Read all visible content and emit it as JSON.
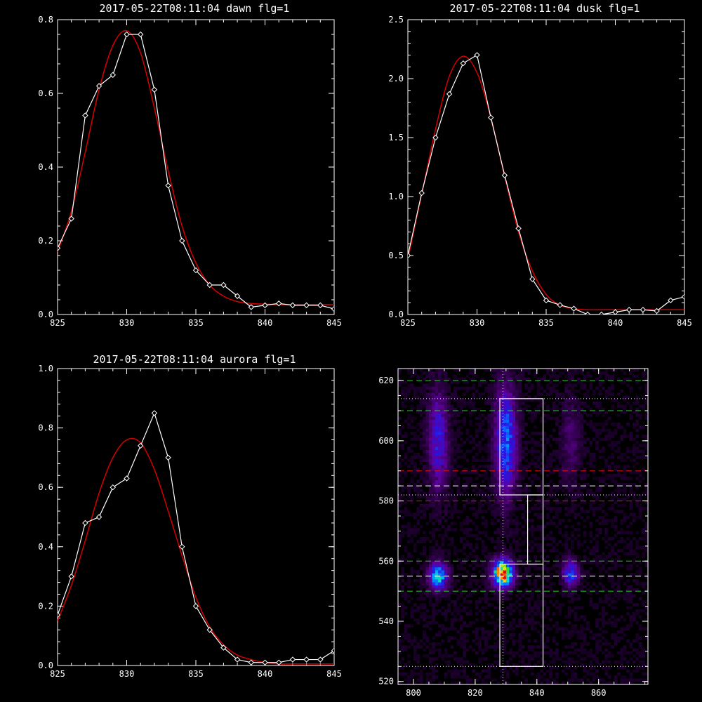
{
  "colors": {
    "background": "#000000",
    "axes": "#ffffff",
    "data_line": "#ffffff",
    "fit_line": "#d40000",
    "green_dash": "#22cc22",
    "red_dash": "#dd1111"
  },
  "chart_data": [
    {
      "type": "line",
      "title": "2017-05-22T08:11:04 dawn flg=1",
      "xlim": [
        825,
        845
      ],
      "ylim": [
        0,
        0.8
      ],
      "xticks": [
        "825",
        "830",
        "835",
        "840",
        "845"
      ],
      "yticks": [
        "0.0",
        "0.2",
        "0.4",
        "0.6",
        "0.8"
      ],
      "series": [
        {
          "role": "data",
          "marker": "diamond",
          "x": [
            825,
            826,
            827,
            828,
            829,
            830,
            831,
            832,
            833,
            834,
            835,
            836,
            837,
            838,
            839,
            840,
            841,
            842,
            843,
            844,
            845
          ],
          "y": [
            0.18,
            0.26,
            0.54,
            0.62,
            0.65,
            0.76,
            0.76,
            0.61,
            0.35,
            0.2,
            0.12,
            0.08,
            0.08,
            0.05,
            0.02,
            0.025,
            0.03,
            0.025,
            0.025,
            0.025,
            0.015
          ]
        },
        {
          "role": "fit",
          "x": [
            825,
            826,
            827,
            828,
            829,
            830,
            831,
            832,
            833,
            834,
            835,
            836,
            837,
            838,
            839,
            840,
            841,
            842,
            843,
            844,
            845
          ],
          "y": [
            0.17,
            0.28,
            0.44,
            0.61,
            0.73,
            0.77,
            0.71,
            0.56,
            0.39,
            0.24,
            0.14,
            0.08,
            0.05,
            0.035,
            0.03,
            0.028,
            0.027,
            0.027,
            0.027,
            0.027,
            0.027
          ]
        }
      ]
    },
    {
      "type": "line",
      "title": "2017-05-22T08:11:04 dusk flg=1",
      "xlim": [
        825,
        845
      ],
      "ylim": [
        0,
        2.5
      ],
      "xticks": [
        "825",
        "830",
        "835",
        "840",
        "845"
      ],
      "yticks": [
        "0.0",
        "0.5",
        "1.0",
        "1.5",
        "2.0",
        "2.5"
      ],
      "series": [
        {
          "role": "data",
          "marker": "diamond",
          "x": [
            825,
            826,
            827,
            828,
            829,
            830,
            831,
            832,
            833,
            834,
            835,
            836,
            837,
            838,
            839,
            840,
            841,
            842,
            843,
            844,
            845
          ],
          "y": [
            0.5,
            1.03,
            1.5,
            1.87,
            2.13,
            2.2,
            1.67,
            1.18,
            0.73,
            0.3,
            0.12,
            0.08,
            0.05,
            0.0,
            0.0,
            0.02,
            0.04,
            0.04,
            0.03,
            0.12,
            0.15
          ]
        },
        {
          "role": "fit",
          "x": [
            825,
            826,
            827,
            828,
            829,
            830,
            831,
            832,
            833,
            834,
            835,
            836,
            837,
            838,
            839,
            840,
            841,
            842,
            843,
            844,
            845
          ],
          "y": [
            0.47,
            1.02,
            1.57,
            2.02,
            2.19,
            2.05,
            1.67,
            1.17,
            0.7,
            0.37,
            0.17,
            0.08,
            0.05,
            0.04,
            0.04,
            0.04,
            0.04,
            0.04,
            0.04,
            0.04,
            0.04
          ]
        }
      ]
    },
    {
      "type": "line",
      "title": "2017-05-22T08:11:04 aurora flg=1",
      "xlim": [
        825,
        845
      ],
      "ylim": [
        0,
        1.0
      ],
      "xticks": [
        "825",
        "830",
        "835",
        "840",
        "845"
      ],
      "yticks": [
        "0.0",
        "0.2",
        "0.4",
        "0.6",
        "0.8",
        "1.0"
      ],
      "series": [
        {
          "role": "data",
          "marker": "diamond",
          "x": [
            825,
            826,
            827,
            828,
            829,
            830,
            831,
            832,
            833,
            834,
            835,
            836,
            837,
            838,
            839,
            840,
            841,
            842,
            843,
            844,
            845
          ],
          "y": [
            0.17,
            0.3,
            0.48,
            0.5,
            0.6,
            0.63,
            0.74,
            0.85,
            0.7,
            0.4,
            0.2,
            0.12,
            0.06,
            0.02,
            0.01,
            0.01,
            0.01,
            0.02,
            0.02,
            0.02,
            0.05
          ]
        },
        {
          "role": "fit",
          "x": [
            825,
            826,
            827,
            828,
            829,
            830,
            831,
            832,
            833,
            834,
            835,
            836,
            837,
            838,
            839,
            840,
            841,
            842,
            843,
            844,
            845
          ],
          "y": [
            0.15,
            0.27,
            0.42,
            0.58,
            0.7,
            0.76,
            0.75,
            0.66,
            0.52,
            0.37,
            0.23,
            0.13,
            0.07,
            0.035,
            0.02,
            0.01,
            0.005,
            0.005,
            0.005,
            0.005,
            0.005
          ]
        }
      ]
    },
    {
      "type": "heatmap",
      "title": "",
      "xlim": [
        795,
        876
      ],
      "ylim": [
        519,
        624
      ],
      "xticks": [
        "800",
        "820",
        "840",
        "860"
      ],
      "yticks": [
        "520",
        "540",
        "560",
        "580",
        "600",
        "620"
      ],
      "colormap": "rainbow",
      "blobs": [
        {
          "x": 808,
          "y": 555,
          "sx": 2.0,
          "sy": 3.0,
          "amp": 0.6
        },
        {
          "x": 829,
          "y": 556,
          "sx": 2.2,
          "sy": 3.0,
          "amp": 1.0
        },
        {
          "x": 851,
          "y": 556,
          "sx": 1.8,
          "sy": 3.0,
          "amp": 0.4
        },
        {
          "x": 830,
          "y": 600,
          "sx": 2.4,
          "sy": 12.0,
          "amp": 0.45
        },
        {
          "x": 808,
          "y": 600,
          "sx": 2.2,
          "sy": 11.0,
          "amp": 0.32
        },
        {
          "x": 851,
          "y": 600,
          "sx": 2.2,
          "sy": 10.0,
          "amp": 0.12
        }
      ],
      "hlines": [
        {
          "y": 620,
          "style": "green-dash"
        },
        {
          "y": 610,
          "style": "green-dash"
        },
        {
          "y": 560,
          "style": "green-dash"
        },
        {
          "y": 550,
          "style": "green-dash"
        },
        {
          "y": 590,
          "style": "red-dash"
        },
        {
          "y": 580,
          "style": "red-dash"
        },
        {
          "y": 585,
          "style": "white-dash"
        },
        {
          "y": 555,
          "style": "white-dash"
        },
        {
          "y": 614,
          "style": "white-dot"
        },
        {
          "y": 582,
          "style": "white-dot"
        },
        {
          "y": 525,
          "style": "white-dot"
        }
      ],
      "vlines": [
        {
          "x": 829,
          "style": "white-dot"
        }
      ],
      "boxes": [
        {
          "x0": 828,
          "x1": 842,
          "y0": 582,
          "y1": 614
        },
        {
          "x0": 837,
          "x1": 842,
          "y0": 559,
          "y1": 582
        },
        {
          "x0": 828,
          "x1": 842,
          "y0": 525,
          "y1": 559
        }
      ]
    }
  ]
}
